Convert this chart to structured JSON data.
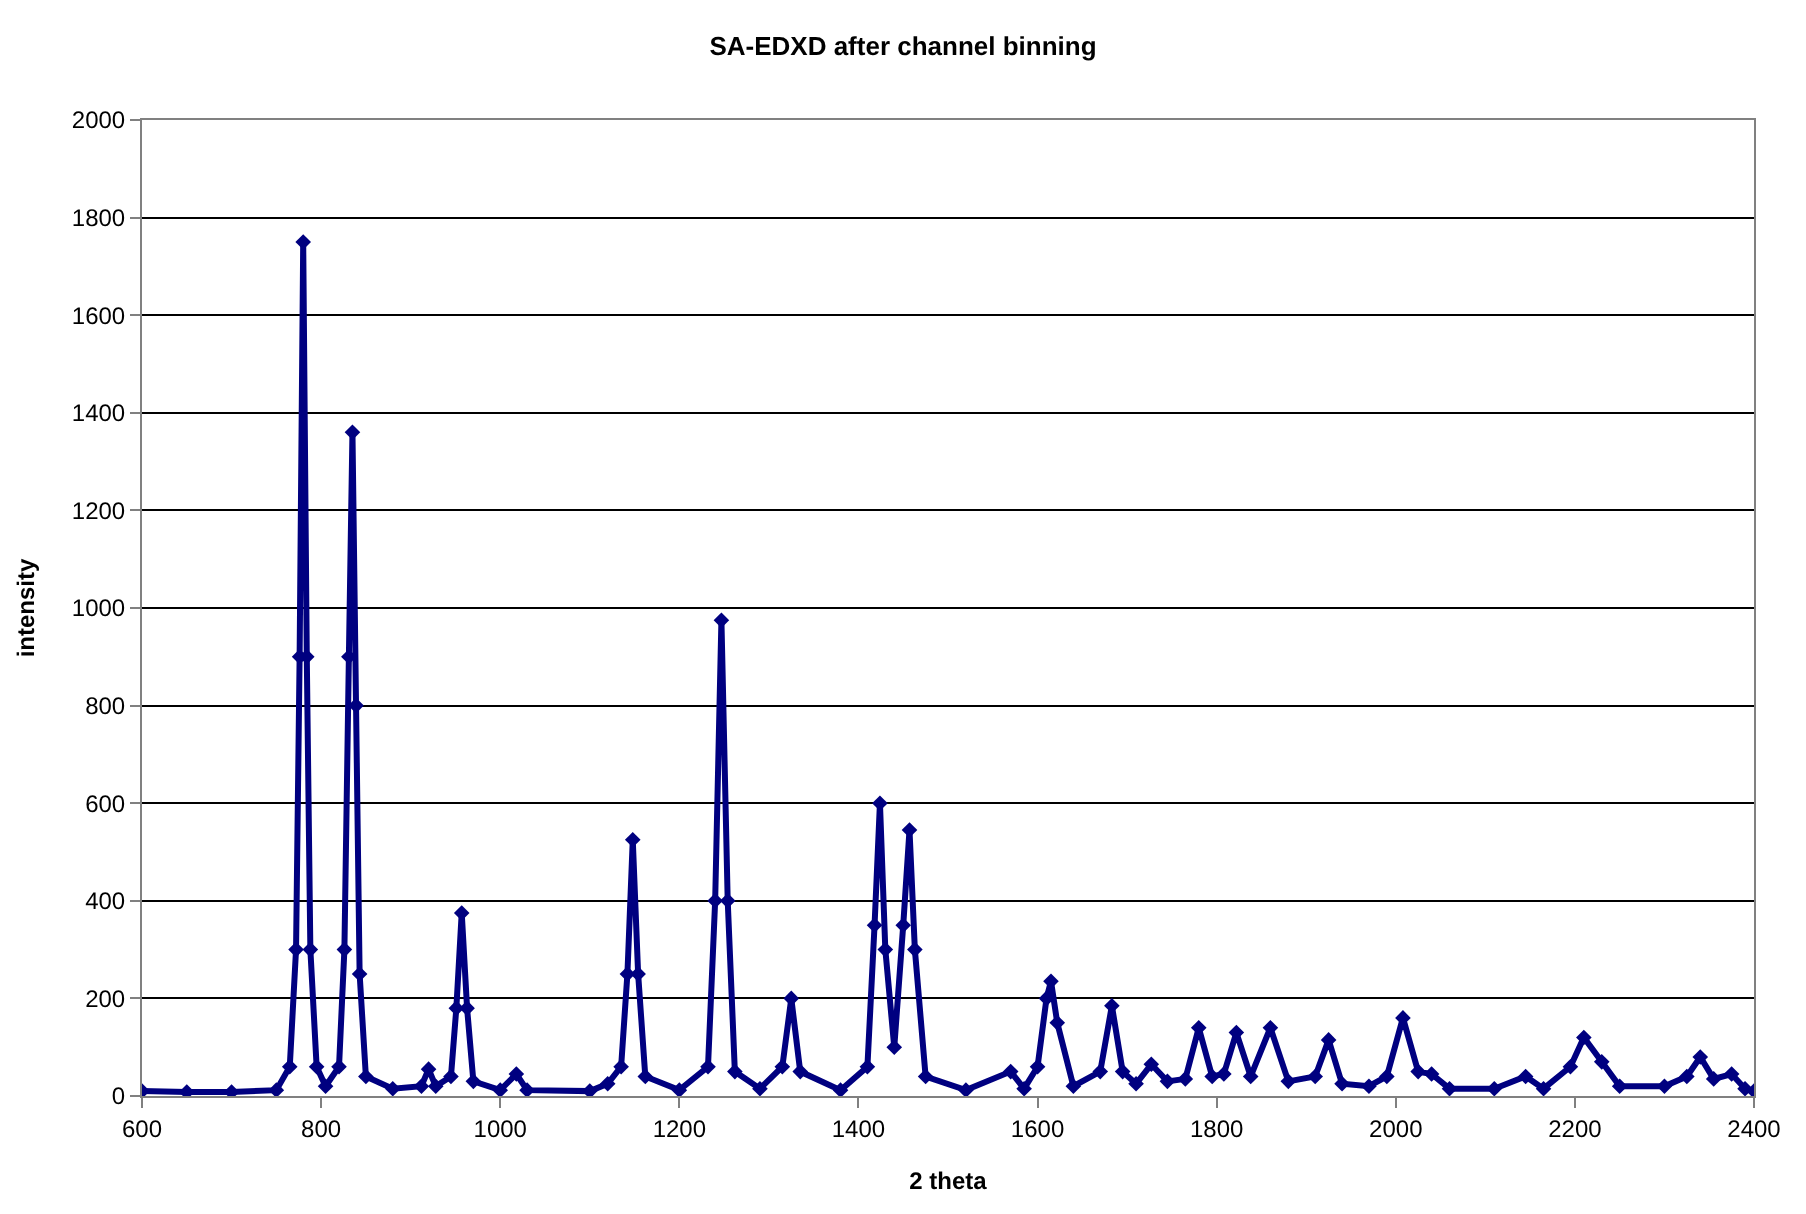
{
  "chart_data": {
    "type": "line",
    "title": "SA-EDXD after channel binning",
    "xlabel": "2 theta",
    "ylabel": "intensity",
    "xlim": [
      600,
      2400
    ],
    "xticks": [
      600,
      800,
      1000,
      1200,
      1400,
      1600,
      1800,
      2000,
      2200,
      2400
    ],
    "ylim": [
      0,
      2000
    ],
    "yticks": [
      0,
      200,
      400,
      600,
      800,
      1000,
      1200,
      1400,
      1600,
      1800,
      2000
    ],
    "grid": "y",
    "marker": "diamond",
    "series": [
      {
        "color": "#000080",
        "x": [
          600,
          650,
          700,
          750,
          765,
          772,
          776,
          780,
          784,
          788,
          795,
          805,
          820,
          826,
          831,
          835,
          839,
          843,
          850,
          880,
          912,
          920,
          928,
          945,
          951,
          957,
          963,
          970,
          1000,
          1018,
          1030,
          1100,
          1120,
          1135,
          1142,
          1148,
          1154,
          1162,
          1200,
          1232,
          1240,
          1247,
          1254,
          1262,
          1290,
          1315,
          1325,
          1335,
          1380,
          1410,
          1418,
          1424,
          1430,
          1440,
          1450,
          1457,
          1463,
          1475,
          1520,
          1570,
          1585,
          1600,
          1610,
          1615,
          1622,
          1640,
          1670,
          1683,
          1695,
          1710,
          1727,
          1745,
          1765,
          1780,
          1795,
          1808,
          1822,
          1838,
          1860,
          1880,
          1910,
          1925,
          1940,
          1970,
          1990,
          2008,
          2025,
          2040,
          2060,
          2110,
          2145,
          2165,
          2195,
          2210,
          2230,
          2250,
          2300,
          2325,
          2340,
          2355,
          2375,
          2390,
          2400
        ],
        "values": [
          10,
          8,
          8,
          12,
          60,
          300,
          900,
          1750,
          900,
          300,
          60,
          20,
          60,
          300,
          900,
          1360,
          800,
          250,
          40,
          15,
          20,
          55,
          20,
          40,
          180,
          375,
          180,
          30,
          12,
          45,
          12,
          10,
          25,
          60,
          250,
          525,
          250,
          40,
          12,
          60,
          400,
          975,
          400,
          50,
          15,
          60,
          200,
          50,
          12,
          60,
          350,
          600,
          300,
          100,
          350,
          545,
          300,
          40,
          12,
          50,
          15,
          60,
          200,
          235,
          150,
          20,
          50,
          185,
          50,
          25,
          65,
          30,
          35,
          140,
          40,
          45,
          130,
          40,
          140,
          30,
          40,
          115,
          25,
          20,
          40,
          160,
          50,
          45,
          15,
          15,
          40,
          15,
          60,
          120,
          70,
          20,
          20,
          40,
          80,
          35,
          45,
          15,
          10
        ]
      }
    ]
  }
}
